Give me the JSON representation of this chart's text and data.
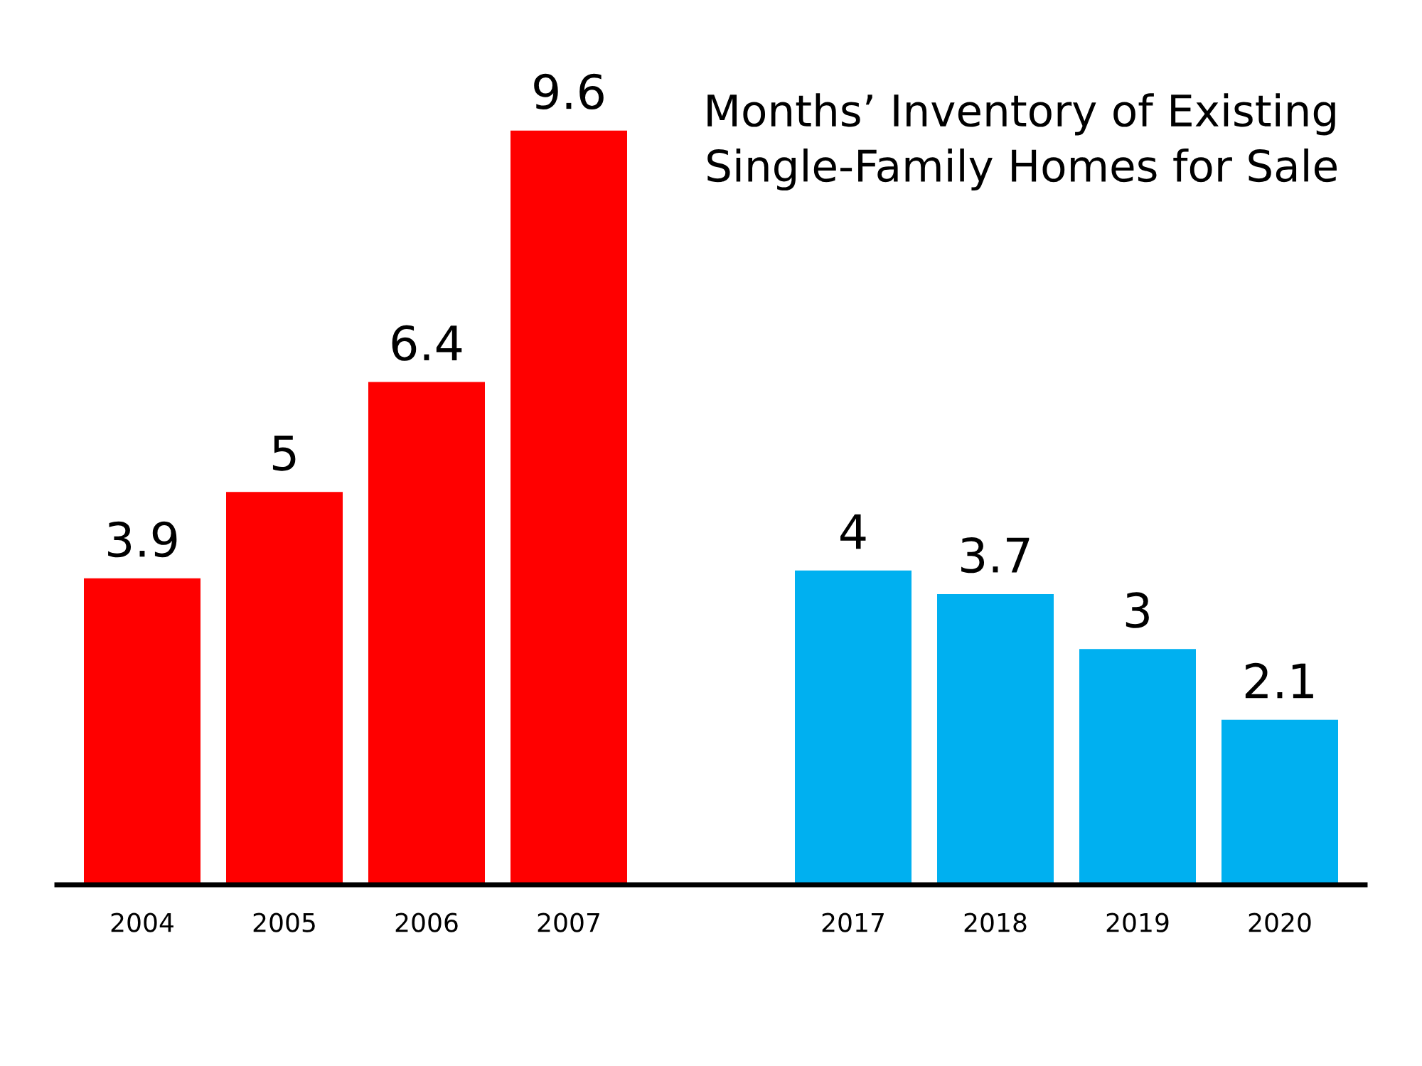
{
  "chart_data": {
    "type": "bar",
    "title": "Months’ Inventory of Existing\nSingle-Family Homes for Sale",
    "categories": [
      "2004",
      "2005",
      "2006",
      "2007",
      null,
      "2017",
      "2018",
      "2019",
      "2020"
    ],
    "values": [
      3.9,
      5,
      6.4,
      9.6,
      null,
      4,
      3.7,
      3,
      2.1
    ],
    "colors": [
      "#ff0000",
      "#ff0000",
      "#ff0000",
      "#ff0000",
      "#ffffff",
      "#00b0f0",
      "#00b0f0",
      "#00b0f0",
      "#00b0f0"
    ],
    "data_labels": true,
    "grid": false,
    "legend": false
  }
}
